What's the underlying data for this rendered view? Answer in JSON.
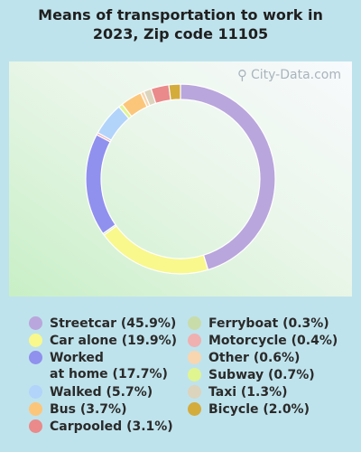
{
  "title_line1": "Means of transportation to work in",
  "title_line2": "2023, Zip code 11105",
  "watermark": "City-Data.com",
  "chart_data": {
    "type": "pie",
    "title": "Means of transportation to work in 2023, Zip code 11105",
    "series": [
      {
        "name": "Streetcar",
        "value": 45.9,
        "label": "Streetcar (45.9%)",
        "color": "#b9a6dc"
      },
      {
        "name": "Car alone",
        "value": 19.9,
        "label": "Car alone (19.9%)",
        "color": "#f8f88c"
      },
      {
        "name": "Ferryboat",
        "value": 0.3,
        "label": "Ferryboat (0.3%)",
        "color": "#c8dcaa"
      },
      {
        "name": "Worked at home",
        "value": 17.7,
        "label": "Worked\nat home (17.7%)",
        "color": "#9090ee"
      },
      {
        "name": "Motorcycle",
        "value": 0.4,
        "label": "Motorcycle (0.4%)",
        "color": "#f0b0b0"
      },
      {
        "name": "Walked",
        "value": 5.7,
        "label": "Walked (5.7%)",
        "color": "#b2d4fb"
      },
      {
        "name": "Subway",
        "value": 0.7,
        "label": "Subway (0.7%)",
        "color": "#e0f590"
      },
      {
        "name": "Bus",
        "value": 3.7,
        "label": "Bus (3.7%)",
        "color": "#fcc67a"
      },
      {
        "name": "Other",
        "value": 0.6,
        "label": "Other (0.6%)",
        "color": "#f7d6b0"
      },
      {
        "name": "Taxi",
        "value": 1.3,
        "label": "Taxi (1.3%)",
        "color": "#dcd4bc"
      },
      {
        "name": "Carpooled",
        "value": 3.1,
        "label": "Carpooled (3.1%)",
        "color": "#ea8a8a"
      },
      {
        "name": "Bicycle",
        "value": 2.0,
        "label": "Bicycle (2.0%)",
        "color": "#d4ac3c"
      }
    ],
    "legend_left": [
      "Streetcar",
      "Car alone",
      "Worked at home",
      "Walked",
      "Bus",
      "Carpooled"
    ],
    "legend_right": [
      "Ferryboat",
      "Motorcycle",
      "Other",
      "Subway",
      "Taxi",
      "Bicycle"
    ],
    "legend_position": "bottom"
  }
}
